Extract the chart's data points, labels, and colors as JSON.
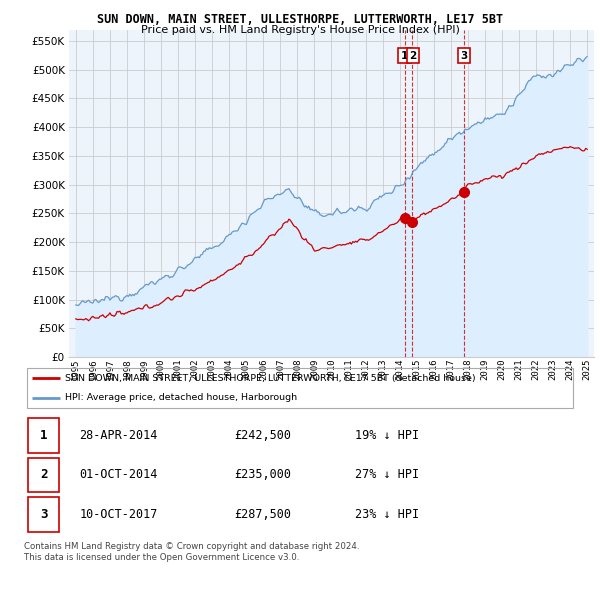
{
  "title": "SUN DOWN, MAIN STREET, ULLESTHORPE, LUTTERWORTH, LE17 5BT",
  "subtitle": "Price paid vs. HM Land Registry's House Price Index (HPI)",
  "legend_label_red": "SUN DOWN, MAIN STREET, ULLESTHORPE, LUTTERWORTH, LE17 5BT (detached house)",
  "legend_label_blue": "HPI: Average price, detached house, Harborough",
  "footnote1": "Contains HM Land Registry data © Crown copyright and database right 2024.",
  "footnote2": "This data is licensed under the Open Government Licence v3.0.",
  "transactions": [
    {
      "num": "1",
      "date": "28-APR-2014",
      "price": "£242,500",
      "pct": "19%",
      "dir": "↓",
      "label": "HPI"
    },
    {
      "num": "2",
      "date": "01-OCT-2014",
      "price": "£235,000",
      "pct": "27%",
      "dir": "↓",
      "label": "HPI"
    },
    {
      "num": "3",
      "date": "10-OCT-2017",
      "price": "£287,500",
      "pct": "23%",
      "dir": "↓",
      "label": "HPI"
    }
  ],
  "transaction_dates": [
    2014.32,
    2014.75,
    2017.77
  ],
  "transaction_prices": [
    242500,
    235000,
    287500
  ],
  "ylim": [
    0,
    570000
  ],
  "yticks": [
    0,
    50000,
    100000,
    150000,
    200000,
    250000,
    300000,
    350000,
    400000,
    450000,
    500000,
    550000
  ],
  "color_red": "#cc0000",
  "color_blue": "#6699cc",
  "color_blue_fill": "#ddeeff",
  "color_grid": "#cccccc",
  "background_color": "#ffffff",
  "chart_bg": "#eef4fb"
}
